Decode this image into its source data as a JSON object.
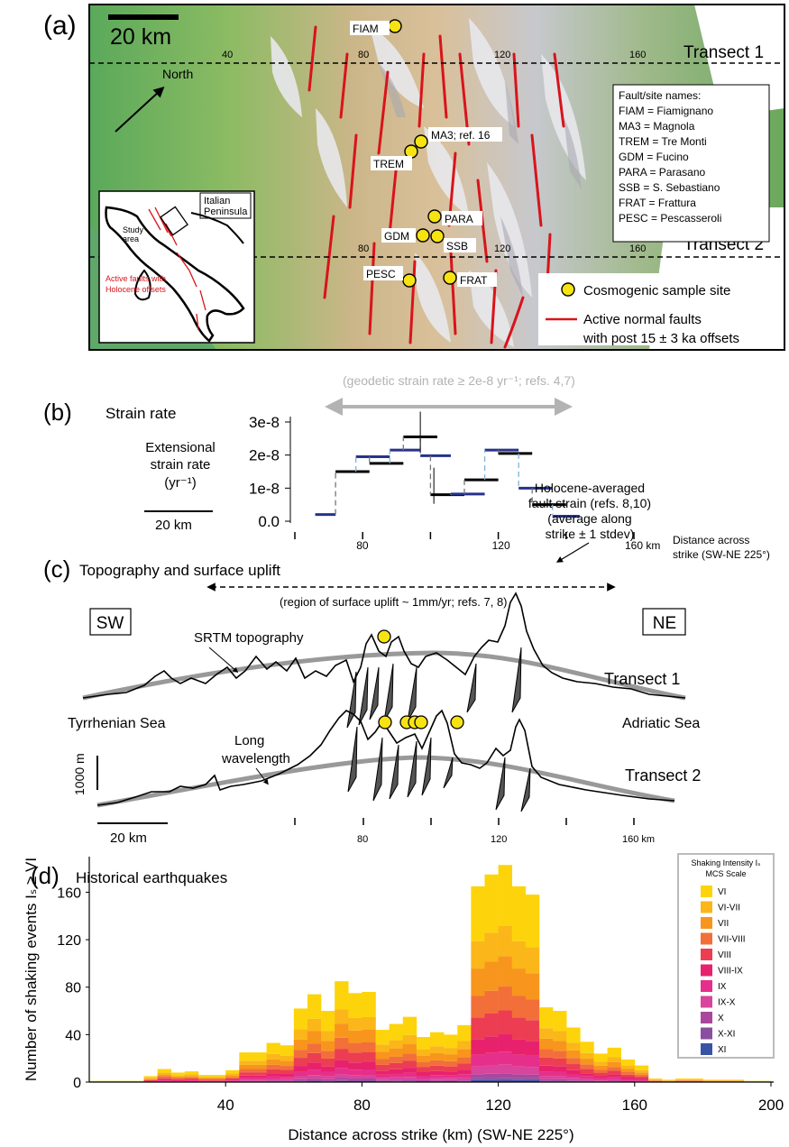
{
  "panel_a": {
    "label": "(a)",
    "scale_bar": "20 km",
    "transect1": "Transect 1",
    "transect2": "Transect 2",
    "north": "North",
    "ticks_top": [
      "40",
      "80",
      "120",
      "160"
    ],
    "ticks_bottom": [
      "80",
      "120",
      "160"
    ],
    "sites": [
      {
        "name": "FIAM"
      },
      {
        "name": "MA3; ref. 16"
      },
      {
        "name": "TREM"
      },
      {
        "name": "PARA"
      },
      {
        "name": "GDM"
      },
      {
        "name": "SSB"
      },
      {
        "name": "PESC"
      },
      {
        "name": "FRAT"
      }
    ],
    "legend_box_title": "Fault/site names:",
    "legend_box_lines": [
      "FIAM = Fiamignano",
      "MA3 = Magnola",
      "TREM = Tre Monti",
      "GDM = Fucino",
      "PARA = Parasano",
      "SSB = S. Sebastiano",
      "FRAT = Frattura",
      "PESC = Pescasseroli"
    ],
    "inset_title_1": "Italian",
    "inset_title_2": "Peninsula",
    "inset_study_1": "Study",
    "inset_study_2": "area",
    "inset_faults_1": "Active faults with",
    "inset_faults_2": "Holocene offsets",
    "legend_sample": "Cosmogenic sample site",
    "legend_fault_1": "Active normal faults",
    "legend_fault_2": "with post 15 ± 3 ka offsets",
    "colors": {
      "fault": "#d9131b",
      "site": "#f7e312",
      "low": "#3e9a4e",
      "mid": "#d7b98c",
      "high": "#e9e9ec"
    }
  },
  "panel_b": {
    "label": "(b)",
    "title": "Strain rate",
    "geodetic": "(geodetic strain rate ≥ 2e-8 yr⁻¹; refs. 4,7)",
    "ylabel_1": "Extensional",
    "ylabel_2": "strain rate",
    "ylabel_3": "(yr⁻¹)",
    "scale": "20 km",
    "ann_1": "Holocene-averaged",
    "ann_2": "fault strain (refs. 8,10)",
    "ann_3": "(average along",
    "ann_4": "strike ± 1 stdev)",
    "xaxis_1": "Distance across",
    "xaxis_2": "strike (SW-NE 225°)",
    "chart_data": {
      "type": "line",
      "ytick_labels": [
        "3e-8",
        "2e-8",
        "1e-8",
        "0.0"
      ],
      "xtick_labels": [
        "80",
        "120",
        "160 km"
      ],
      "ylim": [
        0,
        3e-08
      ],
      "segments": [
        {
          "x": [
            66,
            72
          ],
          "y": 2e-09,
          "c": "blue"
        },
        {
          "x": [
            72,
            82
          ],
          "y": 1.5e-08,
          "c": "black"
        },
        {
          "x": [
            78,
            88
          ],
          "y": 1.95e-08,
          "c": "blue"
        },
        {
          "x": [
            82,
            92
          ],
          "y": 1.75e-08,
          "c": "black"
        },
        {
          "x": [
            88,
            97
          ],
          "y": 2.15e-08,
          "c": "blue"
        },
        {
          "x": [
            92,
            102
          ],
          "y": 2.55e-08,
          "c": "black"
        },
        {
          "x": [
            97,
            106
          ],
          "y": 1.98e-08,
          "c": "blue"
        },
        {
          "x": [
            100,
            110
          ],
          "y": 8e-09,
          "c": "black"
        },
        {
          "x": [
            106,
            116
          ],
          "y": 8.2e-09,
          "c": "blue"
        },
        {
          "x": [
            110,
            120
          ],
          "y": 1.25e-08,
          "c": "black"
        },
        {
          "x": [
            116,
            126
          ],
          "y": 2.15e-08,
          "c": "blue"
        },
        {
          "x": [
            120,
            130
          ],
          "y": 2.05e-08,
          "c": "black"
        },
        {
          "x": [
            126,
            136
          ],
          "y": 1e-08,
          "c": "blue"
        },
        {
          "x": [
            130,
            140
          ],
          "y": 5e-09,
          "c": "black"
        },
        {
          "x": [
            136,
            144
          ],
          "y": 1.5e-09,
          "c": "blue"
        }
      ]
    }
  },
  "panel_c": {
    "label": "(c)",
    "title": "Topography and surface uplift",
    "uplift": "(region of surface uplift ~ 1mm/yr;   refs. 7, 8)",
    "sw": "SW",
    "ne": "NE",
    "srtm": "SRTM topography",
    "transect1": "Transect 1",
    "transect2": "Transect 2",
    "tyrrhenian": "Tyrrhenian Sea",
    "adriatic": "Adriatic Sea",
    "long_1": "Long",
    "long_2": "wavelength",
    "vscale": "1000 m",
    "hscale": "20 km",
    "ticks": [
      "80",
      "120",
      "160 km"
    ]
  },
  "panel_d": {
    "label": "(d)",
    "title": "Historical earthquakes",
    "legend_title_1": "Shaking Intensity Iₛ",
    "legend_title_2": "MCS Scale",
    "chart_data": {
      "type": "bar",
      "xlabel": "Distance across strike (km) (SW-NE 225°)",
      "ylabel": "Number of shaking events Iₛ ≥ VI",
      "xlim": [
        0,
        200
      ],
      "ylim": [
        0,
        190
      ],
      "xticks": [
        40,
        80,
        120,
        160,
        200
      ],
      "yticks": [
        0,
        40,
        80,
        120,
        160
      ],
      "bin_width": 4,
      "bin_starts": [
        0,
        4,
        8,
        12,
        16,
        20,
        24,
        28,
        32,
        36,
        40,
        44,
        48,
        52,
        56,
        60,
        64,
        68,
        72,
        76,
        80,
        84,
        88,
        92,
        96,
        100,
        104,
        108,
        112,
        116,
        120,
        124,
        128,
        132,
        136,
        140,
        144,
        148,
        152,
        156,
        160,
        164,
        168,
        172,
        176,
        180,
        184,
        188,
        192,
        196
      ],
      "totals": [
        1,
        1,
        1,
        1,
        5,
        11,
        8,
        9,
        6,
        6,
        10,
        25,
        25,
        33,
        31,
        62,
        74,
        60,
        85,
        75,
        76,
        44,
        49,
        55,
        38,
        42,
        40,
        48,
        165,
        175,
        183,
        165,
        158,
        63,
        60,
        46,
        34,
        24,
        29,
        19,
        14,
        3,
        2,
        3,
        3,
        2,
        2,
        2,
        1,
        1
      ],
      "classes": [
        "VI",
        "VI-VII",
        "VII",
        "VII-VIII",
        "VIII",
        "VIII-IX",
        "IX",
        "IX-X",
        "X",
        "X-XI",
        "XI"
      ],
      "class_colors": [
        "#fdd40b",
        "#fbb61a",
        "#f8951d",
        "#f26f3a",
        "#ec3d53",
        "#e8216d",
        "#e62f8b",
        "#d9449c",
        "#a9479e",
        "#8a4f9e",
        "#3953a4"
      ],
      "class_fractions": [
        0.28,
        0.14,
        0.14,
        0.11,
        0.11,
        0.08,
        0.06,
        0.04,
        0.02,
        0.01,
        0.01
      ]
    }
  }
}
